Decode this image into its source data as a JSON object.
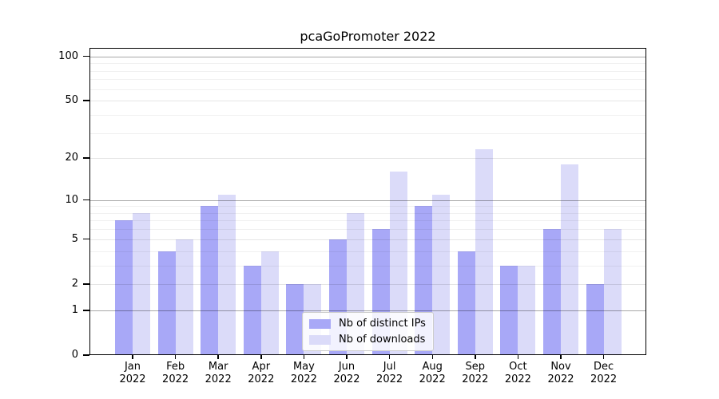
{
  "title": "pcaGoPromoter 2022",
  "chart_data": {
    "type": "bar",
    "title": "pcaGoPromoter 2022",
    "categories": [
      "Jan",
      "Feb",
      "Mar",
      "Apr",
      "May",
      "Jun",
      "Jul",
      "Aug",
      "Sep",
      "Oct",
      "Nov",
      "Dec"
    ],
    "year": "2022",
    "series": [
      {
        "name": "Nb of distinct IPs",
        "color": "#a8a8f7",
        "values": [
          7,
          4,
          9,
          3,
          2,
          5,
          6,
          9,
          4,
          3,
          6,
          2
        ]
      },
      {
        "name": "Nb of downloads",
        "color": "#dbdbf9",
        "values": [
          8,
          5,
          11,
          4,
          2,
          8,
          16,
          11,
          23,
          3,
          18,
          6
        ]
      }
    ],
    "xlabel": "",
    "ylabel": "",
    "scale": "log10(1+x)",
    "ylim": [
      0,
      110
    ],
    "yticks": [
      0,
      1,
      2,
      5,
      10,
      20,
      50,
      100
    ],
    "grid_major": [
      1,
      10,
      100
    ],
    "grid_mid": [
      2,
      5,
      20,
      50
    ],
    "grid_minor": [
      3,
      4,
      6,
      7,
      8,
      9,
      30,
      40,
      60,
      70,
      80,
      90
    ],
    "grid": true,
    "legend_position": "lower center"
  }
}
